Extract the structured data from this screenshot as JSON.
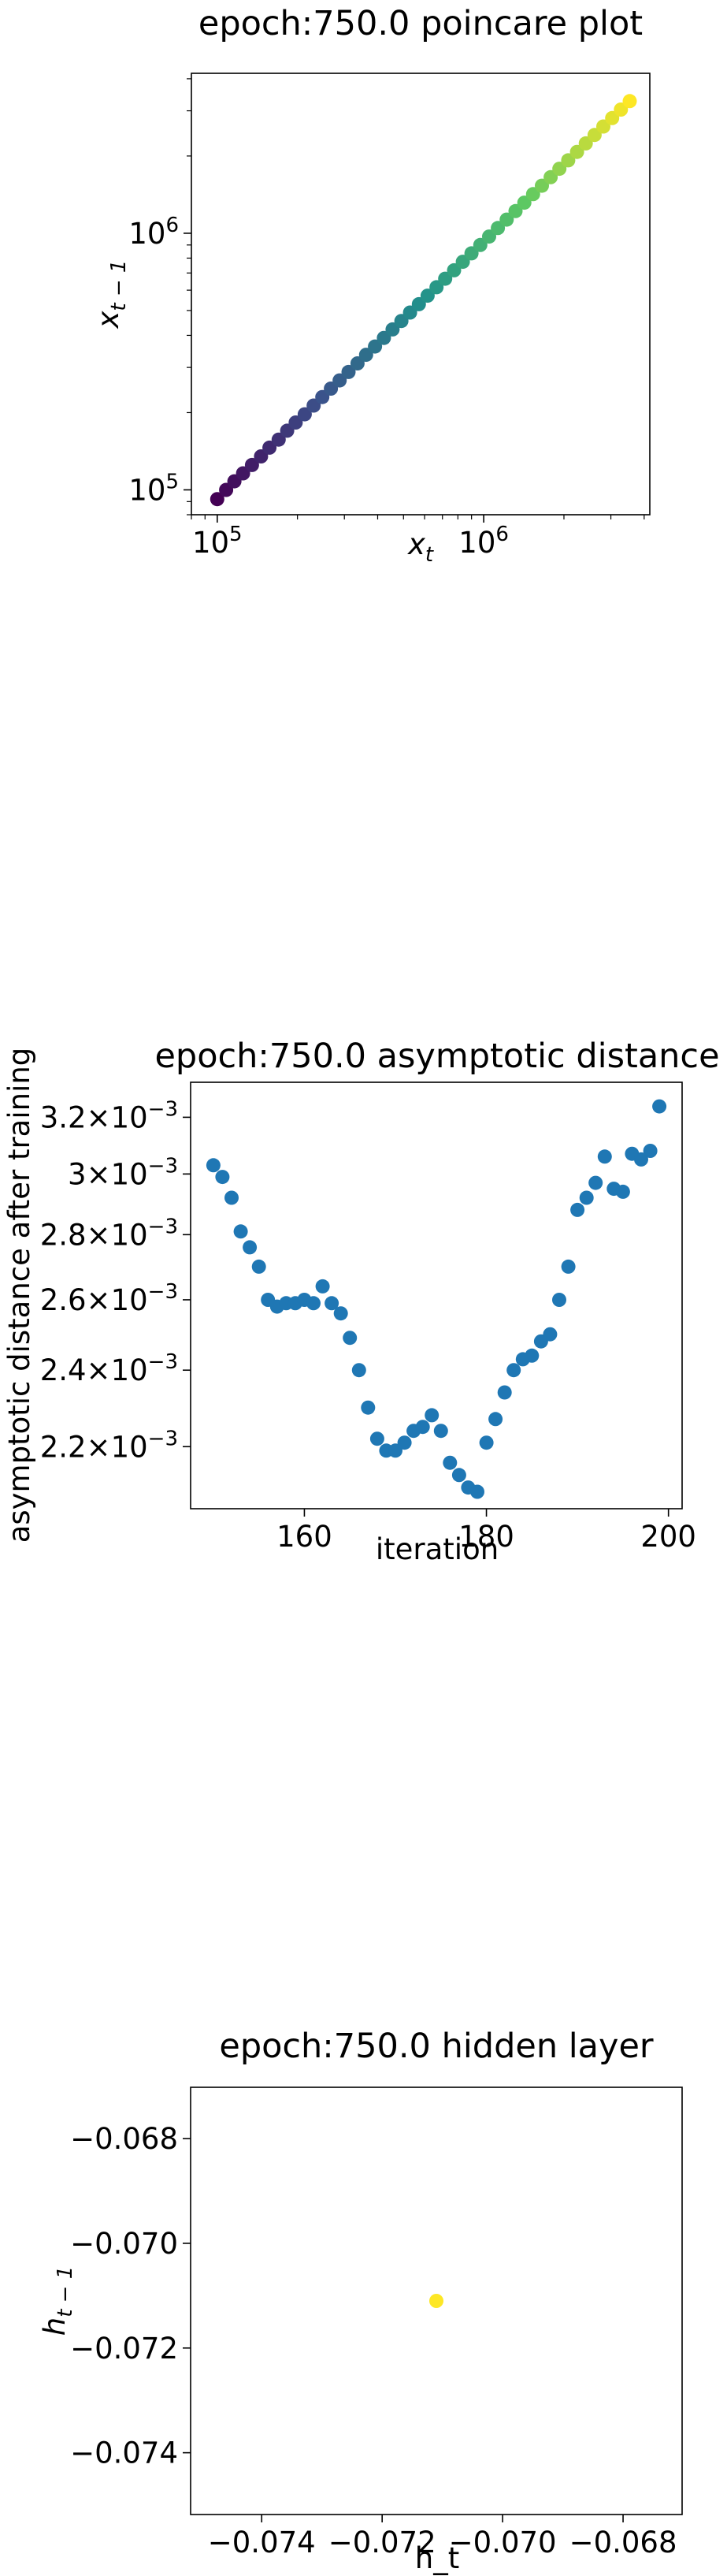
{
  "chart_data": [
    {
      "type": "scatter",
      "title": "epoch:750.0 poincare plot",
      "xlabel": "x_t",
      "ylabel": "x_{t-1}",
      "xscale": "log",
      "yscale": "log",
      "xlim": [
        80000,
        4200000
      ],
      "ylim": [
        80000,
        4200000
      ],
      "xticks": [
        {
          "value": 100000,
          "label": "10^5"
        },
        {
          "value": 1000000,
          "label": "10^6"
        }
      ],
      "yticks": [
        {
          "value": 100000,
          "label": "10^5"
        },
        {
          "value": 1000000,
          "label": "10^6"
        }
      ],
      "colormap": "viridis",
      "grid": false,
      "x": [
        100000,
        108000,
        116000,
        125000,
        135000,
        146000,
        157000,
        170000,
        183000,
        197000,
        213000,
        230000,
        248000,
        267000,
        288000,
        311000,
        336000,
        362000,
        391000,
        422000,
        455000,
        491000,
        529000,
        571000,
        616000,
        665000,
        717000,
        774000,
        835000,
        900000,
        971000,
        1048000,
        1130000,
        1220000,
        1316000,
        1420000,
        1532000,
        1653000,
        1783000,
        1923000,
        2075000,
        2239000,
        2415000,
        2606000,
        2811000,
        3033000,
        3272000,
        3530000
      ],
      "y": [
        92000,
        100000,
        108000,
        116000,
        125000,
        135000,
        146000,
        157000,
        170000,
        183000,
        197000,
        213000,
        230000,
        248000,
        267000,
        288000,
        311000,
        336000,
        362000,
        391000,
        422000,
        455000,
        491000,
        529000,
        571000,
        616000,
        665000,
        717000,
        774000,
        835000,
        900000,
        971000,
        1048000,
        1130000,
        1220000,
        1316000,
        1420000,
        1532000,
        1653000,
        1783000,
        1923000,
        2075000,
        2239000,
        2415000,
        2606000,
        2811000,
        3033000,
        3272000
      ]
    },
    {
      "type": "scatter",
      "title": "epoch:750.0 asymptotic distance",
      "xlabel": "iteration",
      "ylabel": "asymptotic distance after training",
      "yscale": "log",
      "xlim": [
        147.5,
        201.5
      ],
      "ylim": [
        0.00205,
        0.00333
      ],
      "xticks": [
        {
          "value": 160,
          "label": "160"
        },
        {
          "value": 180,
          "label": "180"
        },
        {
          "value": 200,
          "label": "200"
        }
      ],
      "yticks": [
        {
          "value": 0.0022,
          "label": "2.2×10^-3"
        },
        {
          "value": 0.0024,
          "label": "2.4×10^-3"
        },
        {
          "value": 0.0026,
          "label": "2.6×10^-3"
        },
        {
          "value": 0.0028,
          "label": "2.8×10^-3"
        },
        {
          "value": 0.003,
          "label": "3×10^-3"
        },
        {
          "value": 0.0032,
          "label": "3.2×10^-3"
        }
      ],
      "color": "#1f77b4",
      "grid": false,
      "x": [
        150,
        151,
        152,
        153,
        154,
        155,
        156,
        157,
        158,
        159,
        160,
        161,
        162,
        163,
        164,
        165,
        166,
        167,
        168,
        169,
        170,
        171,
        172,
        173,
        174,
        175,
        176,
        177,
        178,
        179,
        180,
        181,
        182,
        183,
        184,
        185,
        186,
        187,
        188,
        189,
        190,
        191,
        192,
        193,
        194,
        195,
        196,
        197,
        198,
        199
      ],
      "y": [
        0.00303,
        0.00299,
        0.00292,
        0.00281,
        0.00276,
        0.0027,
        0.0026,
        0.00258,
        0.00259,
        0.00259,
        0.0026,
        0.00259,
        0.00264,
        0.00259,
        0.00256,
        0.00249,
        0.0024,
        0.0023,
        0.00222,
        0.00219,
        0.00219,
        0.00221,
        0.00224,
        0.00225,
        0.00228,
        0.00224,
        0.00216,
        0.00213,
        0.0021,
        0.00209,
        0.00221,
        0.00227,
        0.00234,
        0.0024,
        0.00243,
        0.00244,
        0.00248,
        0.0025,
        0.0026,
        0.0027,
        0.00288,
        0.00292,
        0.00297,
        0.00306,
        0.00295,
        0.00294,
        0.00307,
        0.00305,
        0.00308,
        0.00324
      ]
    },
    {
      "type": "scatter",
      "title": "epoch:750.0 hidden layer",
      "xlabel": "h_t",
      "ylabel": "h_{t-1}",
      "xlim": [
        -0.07518,
        -0.06702
      ],
      "ylim": [
        -0.07518,
        -0.06702
      ],
      "xticks": [
        {
          "value": -0.074,
          "label": "−0.074"
        },
        {
          "value": -0.072,
          "label": "−0.072"
        },
        {
          "value": -0.07,
          "label": "−0.070"
        },
        {
          "value": -0.068,
          "label": "−0.068"
        }
      ],
      "yticks": [
        {
          "value": -0.074,
          "label": "−0.074"
        },
        {
          "value": -0.072,
          "label": "−0.072"
        },
        {
          "value": -0.07,
          "label": "−0.070"
        },
        {
          "value": -0.068,
          "label": "−0.068"
        }
      ],
      "color": "#fde725",
      "grid": false,
      "x": [
        -0.0711
      ],
      "y": [
        -0.0711
      ]
    }
  ]
}
